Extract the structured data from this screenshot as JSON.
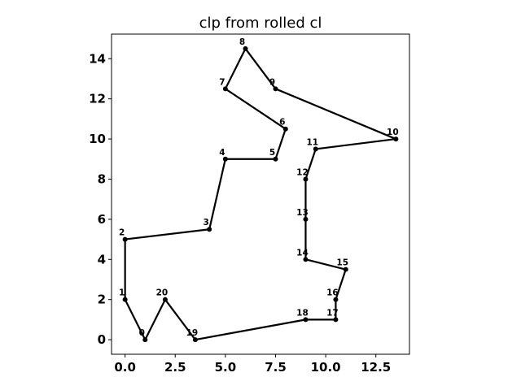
{
  "chart_data": {
    "type": "line",
    "title": "clp from rolled cl",
    "xlabel": "",
    "ylabel": "",
    "xlim": [
      -0.675,
      14.175
    ],
    "ylim": [
      -0.725,
      15.225
    ],
    "xticks": [
      0.0,
      2.5,
      5.0,
      7.5,
      10.0,
      12.5
    ],
    "xtick_labels": [
      "0.0",
      "2.5",
      "5.0",
      "7.5",
      "10.0",
      "12.5"
    ],
    "yticks": [
      0,
      2,
      4,
      6,
      8,
      10,
      12,
      14
    ],
    "ytick_labels": [
      "0",
      "2",
      "4",
      "6",
      "8",
      "10",
      "12",
      "14"
    ],
    "grid": false,
    "line_color": "#000000",
    "points": [
      {
        "label": "0",
        "x": 1.0,
        "y": 0.0
      },
      {
        "label": "1",
        "x": 0.0,
        "y": 2.0
      },
      {
        "label": "2",
        "x": 0.0,
        "y": 5.0
      },
      {
        "label": "3",
        "x": 4.2,
        "y": 5.5
      },
      {
        "label": "4",
        "x": 5.0,
        "y": 9.0
      },
      {
        "label": "5",
        "x": 7.5,
        "y": 9.0
      },
      {
        "label": "6",
        "x": 8.0,
        "y": 10.5
      },
      {
        "label": "7",
        "x": 5.0,
        "y": 12.5
      },
      {
        "label": "8",
        "x": 6.0,
        "y": 14.5
      },
      {
        "label": "9",
        "x": 7.5,
        "y": 12.5
      },
      {
        "label": "10",
        "x": 13.5,
        "y": 10.0
      },
      {
        "label": "11",
        "x": 9.5,
        "y": 9.5
      },
      {
        "label": "12",
        "x": 9.0,
        "y": 8.0
      },
      {
        "label": "13",
        "x": 9.0,
        "y": 6.0
      },
      {
        "label": "14",
        "x": 9.0,
        "y": 4.0
      },
      {
        "label": "15",
        "x": 11.0,
        "y": 3.5
      },
      {
        "label": "16",
        "x": 10.5,
        "y": 2.0
      },
      {
        "label": "17",
        "x": 10.5,
        "y": 1.0
      },
      {
        "label": "18",
        "x": 9.0,
        "y": 1.0
      },
      {
        "label": "19",
        "x": 3.5,
        "y": 0.0
      },
      {
        "label": "20",
        "x": 2.0,
        "y": 2.0
      }
    ]
  }
}
